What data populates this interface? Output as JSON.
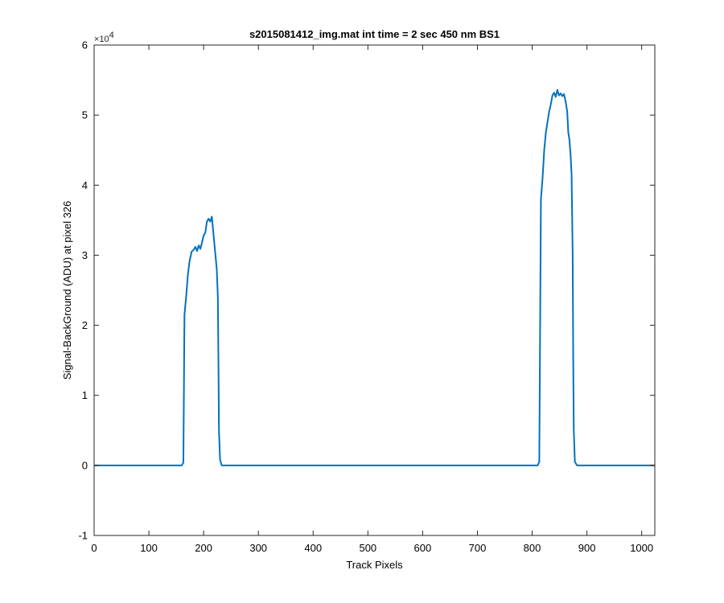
{
  "chart_data": {
    "type": "line",
    "title": "s2015081412_img.mat int time = 2 sec  450 nm BS1",
    "xlabel": "Track Pixels",
    "ylabel": "Signal-BackGround (ADU) at pixel 326",
    "y_exponent_base": "×10",
    "y_exponent_power": "4",
    "xlim": [
      0,
      1024
    ],
    "ylim": [
      -10000,
      60000
    ],
    "x_ticks": [
      0,
      100,
      200,
      300,
      400,
      500,
      600,
      700,
      800,
      900,
      1000
    ],
    "x_tick_labels": [
      "0",
      "100",
      "200",
      "300",
      "400",
      "500",
      "600",
      "700",
      "800",
      "900",
      "1000"
    ],
    "y_ticks": [
      -10000,
      0,
      10000,
      20000,
      30000,
      40000,
      50000,
      60000
    ],
    "y_tick_labels": [
      "-1",
      "0",
      "1",
      "2",
      "3",
      "4",
      "5",
      "6"
    ],
    "grid": false,
    "box": true,
    "series": [
      {
        "color": "#0072BD",
        "points": [
          [
            0,
            0
          ],
          [
            160,
            0
          ],
          [
            163,
            400
          ],
          [
            165,
            21500
          ],
          [
            168,
            24000
          ],
          [
            171,
            27000
          ],
          [
            174,
            29000
          ],
          [
            178,
            30500
          ],
          [
            182,
            30800
          ],
          [
            185,
            31200
          ],
          [
            188,
            30600
          ],
          [
            191,
            31400
          ],
          [
            194,
            30900
          ],
          [
            197,
            31800
          ],
          [
            200,
            32800
          ],
          [
            203,
            33200
          ],
          [
            206,
            34800
          ],
          [
            209,
            35200
          ],
          [
            212,
            34800
          ],
          [
            215,
            35500
          ],
          [
            218,
            33000
          ],
          [
            221,
            30500
          ],
          [
            224,
            28000
          ],
          [
            226,
            24000
          ],
          [
            227,
            15000
          ],
          [
            228,
            5000
          ],
          [
            230,
            800
          ],
          [
            233,
            0
          ],
          [
            300,
            0
          ],
          [
            500,
            0
          ],
          [
            700,
            0
          ],
          [
            810,
            0
          ],
          [
            813,
            500
          ],
          [
            816,
            38000
          ],
          [
            819,
            41000
          ],
          [
            822,
            45000
          ],
          [
            825,
            47500
          ],
          [
            828,
            49000
          ],
          [
            831,
            50500
          ],
          [
            834,
            51500
          ],
          [
            837,
            52800
          ],
          [
            840,
            53200
          ],
          [
            843,
            52600
          ],
          [
            846,
            53600
          ],
          [
            849,
            52800
          ],
          [
            852,
            53100
          ],
          [
            855,
            52700
          ],
          [
            858,
            53000
          ],
          [
            861,
            52000
          ],
          [
            864,
            50500
          ],
          [
            866,
            47500
          ],
          [
            868,
            46500
          ],
          [
            870,
            44500
          ],
          [
            872,
            41500
          ],
          [
            874,
            30000
          ],
          [
            875,
            15000
          ],
          [
            876,
            5000
          ],
          [
            878,
            500
          ],
          [
            882,
            0
          ],
          [
            1024,
            0
          ]
        ]
      }
    ]
  }
}
